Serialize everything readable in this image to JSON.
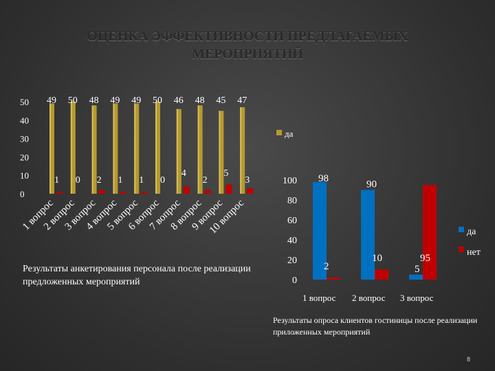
{
  "title_line1": "ОЦЕНКА ЭФФЕКТИВНОСТИ ПРЕДЛАГАЕМЫХ",
  "title_line2": "МЕРОПРИЯТИЙ",
  "caption_left": "Результаты анкетирования персонала после реализации предложенных мероприятий",
  "caption_right": "Результаты опроса клиентов гостиницы после реализации приложенных мероприятий",
  "page_number": "8",
  "colors": {
    "da_left": "#b59a2e",
    "net_left": "#c00000",
    "da_right": "#0070c0",
    "net_right": "#c00000"
  },
  "chart_data": [
    {
      "type": "bar",
      "categories": [
        "1 вопрос",
        "2 вопрос",
        "3 вопрос",
        "4 вопрос",
        "5 вопрос",
        "6 вопрос",
        "7 вопрос",
        "8 вопрос",
        "9 вопрос",
        "10 вопрос"
      ],
      "series": [
        {
          "name": "да",
          "values": [
            49,
            50,
            48,
            49,
            49,
            50,
            46,
            48,
            45,
            47
          ]
        },
        {
          "name": "",
          "values": [
            1,
            0,
            2,
            1,
            1,
            0,
            4,
            2,
            5,
            3
          ]
        }
      ],
      "yticks": [
        "0",
        "10",
        "20",
        "30",
        "40",
        "50"
      ],
      "ylim": [
        0,
        50
      ],
      "legend": "right"
    },
    {
      "type": "bar",
      "categories": [
        "1 вопрос",
        "2 вопрос",
        "3 вопрос"
      ],
      "series": [
        {
          "name": "да",
          "values": [
            98,
            90,
            5
          ]
        },
        {
          "name": "нет",
          "values": [
            2,
            10,
            95
          ]
        }
      ],
      "yticks": [
        "0",
        "20",
        "40",
        "60",
        "80",
        "100"
      ],
      "ylim": [
        0,
        100
      ],
      "legend": "right"
    }
  ]
}
